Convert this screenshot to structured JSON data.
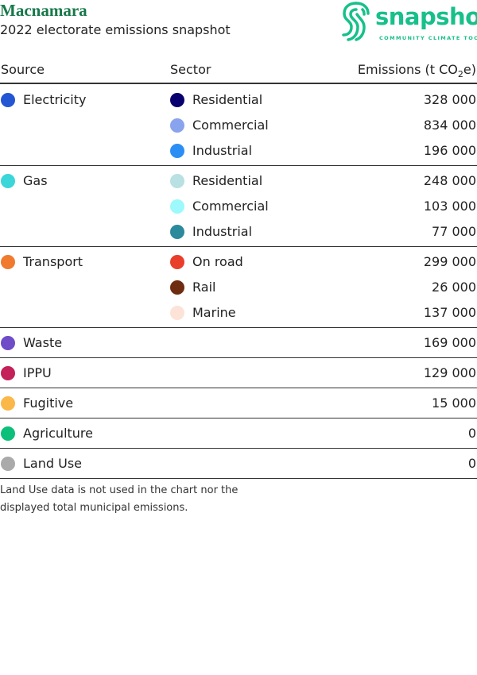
{
  "header": {
    "title": "Macnamara",
    "subtitle": "2022 electorate emissions snapshot"
  },
  "logo": {
    "name": "snapshot",
    "tagline": "COMMUNITY CLIMATE TOOL"
  },
  "table": {
    "columns": [
      "Source",
      "Sector"
    ],
    "emissions_column": [
      "Emissions (t CO",
      "2",
      "e)"
    ],
    "groups": [
      {
        "source": "Electricity",
        "color": "#2456d3",
        "sectors": [
          {
            "name": "Residential",
            "color": "#07006e",
            "emissions": "328 000"
          },
          {
            "name": "Commercial",
            "color": "#8aa3ee",
            "emissions": "834 000"
          },
          {
            "name": "Industrial",
            "color": "#2b8ef5",
            "emissions": "196 000"
          }
        ]
      },
      {
        "source": "Gas",
        "color": "#3ad6d9",
        "sectors": [
          {
            "name": "Residential",
            "color": "#b9e0e3",
            "emissions": "248 000"
          },
          {
            "name": "Commercial",
            "color": "#9df9fb",
            "emissions": "103 000"
          },
          {
            "name": "Industrial",
            "color": "#2b8a9b",
            "emissions": "77 000"
          }
        ]
      },
      {
        "source": "Transport",
        "color": "#f07a2e",
        "sectors": [
          {
            "name": "On road",
            "color": "#e83e2a",
            "emissions": "299 000"
          },
          {
            "name": "Rail",
            "color": "#6e2c10",
            "emissions": "26 000"
          },
          {
            "name": "Marine",
            "color": "#fde3d7",
            "emissions": "137 000"
          }
        ]
      },
      {
        "source": "Waste",
        "color": "#6f4cc8",
        "emissions": "169 000"
      },
      {
        "source": "IPPU",
        "color": "#c4205a",
        "emissions": "129 000"
      },
      {
        "source": "Fugitive",
        "color": "#fbb748",
        "emissions": "15 000"
      },
      {
        "source": "Agriculture",
        "color": "#0cbf7a",
        "emissions": "0"
      },
      {
        "source": "Land Use",
        "color": "#aaaaaa",
        "emissions": "0"
      }
    ]
  },
  "note": [
    "Land Use data is not used in the chart nor the",
    "displayed total municipal emissions."
  ]
}
